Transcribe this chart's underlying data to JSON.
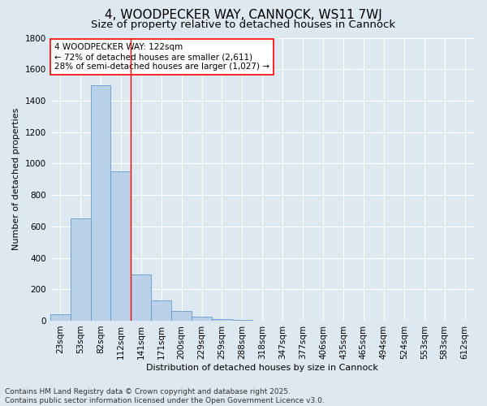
{
  "title": "4, WOODPECKER WAY, CANNOCK, WS11 7WJ",
  "subtitle": "Size of property relative to detached houses in Cannock",
  "xlabel": "Distribution of detached houses by size in Cannock",
  "ylabel": "Number of detached properties",
  "annotation_line1": "4 WOODPECKER WAY: 122sqm",
  "annotation_line2": "← 72% of detached houses are smaller (2,611)",
  "annotation_line3": "28% of semi-detached houses are larger (1,027) →",
  "categories": [
    "23sqm",
    "53sqm",
    "82sqm",
    "112sqm",
    "141sqm",
    "171sqm",
    "200sqm",
    "229sqm",
    "259sqm",
    "288sqm",
    "318sqm",
    "347sqm",
    "377sqm",
    "406sqm",
    "435sqm",
    "465sqm",
    "494sqm",
    "524sqm",
    "553sqm",
    "583sqm",
    "612sqm"
  ],
  "values": [
    40,
    650,
    1500,
    950,
    295,
    130,
    60,
    25,
    10,
    5,
    2,
    0,
    0,
    0,
    0,
    0,
    0,
    0,
    0,
    0,
    0
  ],
  "bar_color": "#b8d0e8",
  "bar_edge_color": "#6699cc",
  "vline_color": "red",
  "vline_x_index": 3.5,
  "background_color": "#dde8f0",
  "plot_bg_color": "#dde8f0",
  "annotation_box_color": "white",
  "annotation_box_edge": "red",
  "ylim": [
    0,
    1800
  ],
  "yticks": [
    0,
    200,
    400,
    600,
    800,
    1000,
    1200,
    1400,
    1600,
    1800
  ],
  "footer_line1": "Contains HM Land Registry data © Crown copyright and database right 2025.",
  "footer_line2": "Contains public sector information licensed under the Open Government Licence v3.0.",
  "title_fontsize": 11,
  "subtitle_fontsize": 9.5,
  "axis_label_fontsize": 8,
  "tick_fontsize": 7.5,
  "annotation_fontsize": 7.5,
  "footer_fontsize": 6.5
}
